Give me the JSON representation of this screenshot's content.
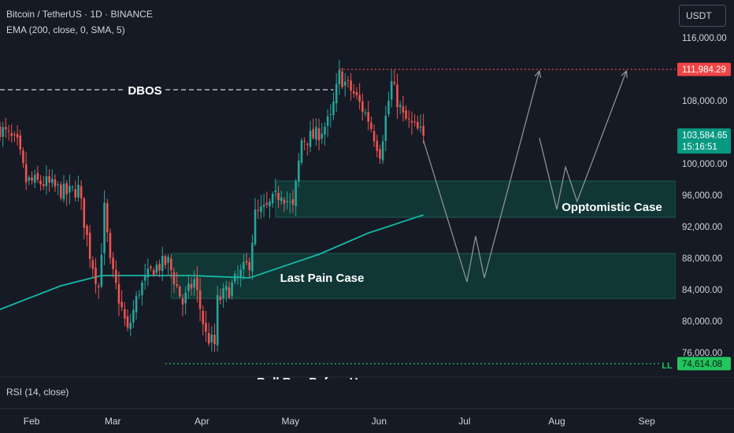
{
  "header": {
    "title": "Bitcoin / TetherUS · 1D · BINANCE",
    "indicator": "EMA (200, close, 0, SMA, 5)"
  },
  "currency_button": "USDT",
  "rsi_label": "RSI (14, close)",
  "colors": {
    "background": "#161a25",
    "up": "#26a69a",
    "down": "#ef5350",
    "ema": "#14b8a6",
    "zone": "#0f3d38",
    "resistance": "#ef4444",
    "support": "#22c55e",
    "current": "#089981"
  },
  "chart_data": {
    "type": "candlestick",
    "symbol": "Bitcoin / TetherUS",
    "timeframe": "1D",
    "exchange": "BINANCE",
    "x_axis": {
      "months": [
        {
          "label": "Feb",
          "date": "2025-02-01"
        },
        {
          "label": "Mar",
          "date": "2025-03-01"
        },
        {
          "label": "Apr",
          "date": "2025-04-01"
        },
        {
          "label": "May",
          "date": "2025-05-01"
        },
        {
          "label": "Jun",
          "date": "2025-06-01"
        },
        {
          "label": "Jul",
          "date": "2025-07-01"
        },
        {
          "label": "Aug",
          "date": "2025-08-01"
        },
        {
          "label": "Sep",
          "date": "2025-09-01"
        }
      ],
      "range": [
        "2025-01-25",
        "2025-09-15"
      ]
    },
    "y_axis": {
      "ticks": [
        "116,000.00",
        "108,000.00",
        "100,000.00",
        "96,000.00",
        "92,000.00",
        "88,000.00",
        "84,000.00",
        "80,000.00",
        "76,000.00"
      ],
      "range": [
        73500,
        118500
      ]
    },
    "closes": [
      {
        "date": "2025-01-25",
        "value": 104500
      },
      {
        "date": "2025-01-31",
        "value": 102400
      },
      {
        "date": "2025-02-03",
        "value": 97800
      },
      {
        "date": "2025-02-10",
        "value": 97500
      },
      {
        "date": "2025-02-17",
        "value": 96200
      },
      {
        "date": "2025-02-21",
        "value": 96800
      },
      {
        "date": "2025-02-25",
        "value": 88600
      },
      {
        "date": "2025-02-28",
        "value": 84300
      },
      {
        "date": "2025-03-02",
        "value": 94200
      },
      {
        "date": "2025-03-04",
        "value": 87200
      },
      {
        "date": "2025-03-10",
        "value": 78600
      },
      {
        "date": "2025-03-14",
        "value": 84000
      },
      {
        "date": "2025-03-19",
        "value": 86800
      },
      {
        "date": "2025-03-24",
        "value": 87500
      },
      {
        "date": "2025-03-29",
        "value": 82300
      },
      {
        "date": "2025-04-02",
        "value": 85200
      },
      {
        "date": "2025-04-06",
        "value": 78200
      },
      {
        "date": "2025-04-09",
        "value": 77000
      },
      {
        "date": "2025-04-10",
        "value": 82500
      },
      {
        "date": "2025-04-15",
        "value": 84500
      },
      {
        "date": "2025-04-21",
        "value": 87500
      },
      {
        "date": "2025-04-23",
        "value": 93500
      },
      {
        "date": "2025-04-27",
        "value": 94300
      },
      {
        "date": "2025-05-02",
        "value": 96500
      },
      {
        "date": "2025-05-06",
        "value": 94200
      },
      {
        "date": "2025-05-09",
        "value": 103000
      },
      {
        "date": "2025-05-14",
        "value": 103600
      },
      {
        "date": "2025-05-19",
        "value": 105600
      },
      {
        "date": "2025-05-22",
        "value": 111200
      },
      {
        "date": "2025-05-27",
        "value": 108900
      },
      {
        "date": "2025-06-01",
        "value": 105700
      },
      {
        "date": "2025-06-05",
        "value": 101500
      },
      {
        "date": "2025-06-09",
        "value": 110200
      },
      {
        "date": "2025-06-13",
        "value": 105900
      },
      {
        "date": "2025-06-17",
        "value": 104500
      },
      {
        "date": "2025-06-20",
        "value": 103584.65
      }
    ],
    "ema_200": [
      {
        "date": "2025-01-25",
        "value": 81500
      },
      {
        "date": "2025-02-15",
        "value": 84500
      },
      {
        "date": "2025-03-01",
        "value": 85800
      },
      {
        "date": "2025-04-01",
        "value": 85800
      },
      {
        "date": "2025-04-21",
        "value": 85500
      },
      {
        "date": "2025-05-15",
        "value": 88500
      },
      {
        "date": "2025-06-01",
        "value": 91200
      },
      {
        "date": "2025-06-20",
        "value": 93500
      }
    ],
    "zones": [
      {
        "label": "Opptomistic Case",
        "from": "2025-04-30",
        "to": "2025-09-15",
        "y_low": 93200,
        "y_high": 97800
      },
      {
        "label": "Last Pain Case",
        "from": "2025-03-25",
        "to": "2025-09-15",
        "y_low": 82900,
        "y_high": 88600
      }
    ],
    "levels": [
      {
        "label": "DBOS",
        "value": 109400,
        "style": "dashed",
        "from": "2025-01-25",
        "to": "2025-05-20"
      },
      {
        "label": "",
        "value": 111984.29,
        "style": "dotted",
        "color": "#ef4444",
        "from": "2025-05-22",
        "to": "2025-09-15"
      },
      {
        "label": "LL",
        "value": 74614.08,
        "style": "dotted",
        "color": "#22c55e",
        "from": "2025-03-23",
        "to": "2025-09-10"
      }
    ],
    "projections": [
      {
        "points": [
          {
            "date": "2025-06-20",
            "value": 103000
          },
          {
            "date": "2025-07-05",
            "value": 85000
          },
          {
            "date": "2025-07-08",
            "value": 90800
          },
          {
            "date": "2025-07-11",
            "value": 85500
          },
          {
            "date": "2025-07-30",
            "value": 111800
          }
        ]
      },
      {
        "points": [
          {
            "date": "2025-07-30",
            "value": 103300
          },
          {
            "date": "2025-08-05",
            "value": 94200
          },
          {
            "date": "2025-08-08",
            "value": 99600
          },
          {
            "date": "2025-08-12",
            "value": 95200
          },
          {
            "date": "2025-08-29",
            "value": 111800
          }
        ]
      }
    ],
    "price_labels": [
      {
        "text": "111,984.29",
        "value": 111984.29,
        "kind": "resistance"
      },
      {
        "text": "103,584.65",
        "value": 103584.65,
        "kind": "current",
        "subtext": "15:16:51"
      },
      {
        "text": "74,614.08",
        "value": 74614.08,
        "kind": "support"
      }
    ],
    "annotations": [
      {
        "text": "DBOS"
      },
      {
        "text": "Opptomistic Case"
      },
      {
        "text": "Last Pain Case"
      },
      {
        "text": "LL"
      },
      {
        "text": "Bull Run Before Un"
      }
    ]
  }
}
